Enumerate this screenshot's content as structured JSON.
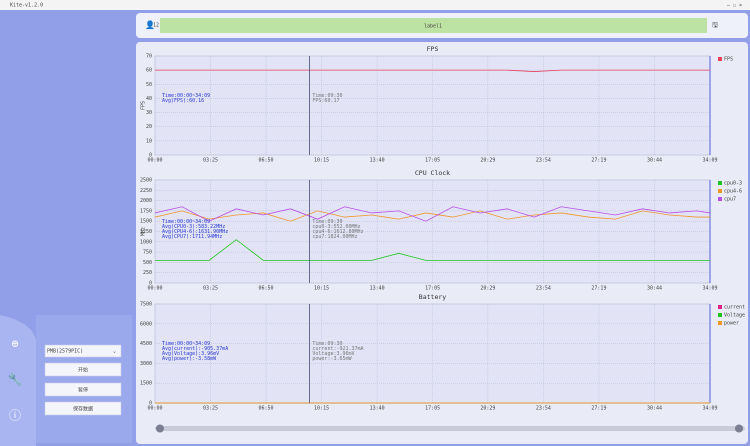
{
  "window": {
    "title": "Kite-v1.2.0"
  },
  "toolbar": {
    "user": "12",
    "label": "label1"
  },
  "controls": {
    "process": "PMB(2579PIC)",
    "buttons": [
      "开始",
      "暂停",
      "保存数据"
    ]
  },
  "chart_data": [
    {
      "type": "line",
      "title": "FPS",
      "y_label": "FPS",
      "cursor": 570,
      "x": [
        0,
        100,
        200,
        300,
        400,
        500,
        600,
        700,
        800,
        900,
        1000,
        1100,
        1200,
        1300,
        1400,
        1500,
        1600,
        1700,
        1800,
        1900,
        2000,
        2049
      ],
      "xlim": [
        0,
        2049
      ],
      "xticks": [
        {
          "value": 0,
          "label": "00:00"
        },
        {
          "value": 205,
          "label": "03:25"
        },
        {
          "value": 410,
          "label": "06:50"
        },
        {
          "value": 615,
          "label": "10:15"
        },
        {
          "value": 820,
          "label": "13:40"
        },
        {
          "value": 1025,
          "label": "17:05"
        },
        {
          "value": 1229,
          "label": "20:29"
        },
        {
          "value": 1434,
          "label": "23:54"
        },
        {
          "value": 1639,
          "label": "27:19"
        },
        {
          "value": 1844,
          "label": "30:44"
        },
        {
          "value": 2049,
          "label": "34:09"
        }
      ],
      "ylim": [
        0,
        70
      ],
      "yticks": [
        0,
        10,
        20,
        30,
        40,
        50,
        60,
        70
      ],
      "series": [
        {
          "name": "FPS",
          "color": "#e8405a",
          "values": [
            60,
            60,
            60,
            60,
            60,
            60,
            60,
            60,
            60,
            60,
            60,
            60,
            60,
            60,
            59,
            60,
            60,
            60,
            60,
            60,
            60,
            60
          ]
        }
      ],
      "summary": [
        "Time:00:00~34:09",
        "Avg(FPS):60.16"
      ],
      "cursor_text": [
        "Time:09:30",
        "FPS:60.17"
      ]
    },
    {
      "type": "line",
      "title": "CPU Clock",
      "y_label": "MHz",
      "cursor": 570,
      "x": [
        0,
        100,
        200,
        300,
        400,
        500,
        600,
        700,
        800,
        900,
        1000,
        1100,
        1200,
        1300,
        1400,
        1500,
        1600,
        1700,
        1800,
        1900,
        2000,
        2049
      ],
      "xlim": [
        0,
        2049
      ],
      "xticks": [
        {
          "value": 0,
          "label": "00:00"
        },
        {
          "value": 205,
          "label": "03:25"
        },
        {
          "value": 410,
          "label": "06:50"
        },
        {
          "value": 615,
          "label": "10:15"
        },
        {
          "value": 820,
          "label": "13:40"
        },
        {
          "value": 1025,
          "label": "17:05"
        },
        {
          "value": 1229,
          "label": "20:29"
        },
        {
          "value": 1434,
          "label": "23:54"
        },
        {
          "value": 1639,
          "label": "27:19"
        },
        {
          "value": 1844,
          "label": "30:44"
        },
        {
          "value": 2049,
          "label": "34:09"
        }
      ],
      "ylim": [
        0,
        2500
      ],
      "yticks": [
        0,
        250,
        500,
        750,
        1000,
        1250,
        1500,
        1750,
        2000,
        2250,
        2500
      ],
      "series": [
        {
          "name": "cpu0-3",
          "color": "#1ec41e",
          "values": [
            550,
            550,
            550,
            1050,
            550,
            550,
            550,
            550,
            550,
            720,
            550,
            550,
            550,
            550,
            550,
            550,
            550,
            550,
            550,
            550,
            550,
            550
          ]
        },
        {
          "name": "cpu4-6",
          "color": "#f0962a",
          "values": [
            1600,
            1750,
            1550,
            1650,
            1700,
            1500,
            1750,
            1600,
            1650,
            1550,
            1700,
            1600,
            1750,
            1550,
            1650,
            1700,
            1600,
            1550,
            1750,
            1650,
            1600,
            1600
          ]
        },
        {
          "name": "cpu7",
          "color": "#b94ee6",
          "values": [
            1700,
            1850,
            1500,
            1800,
            1650,
            1800,
            1550,
            1850,
            1700,
            1750,
            1500,
            1850,
            1700,
            1800,
            1600,
            1850,
            1750,
            1650,
            1800,
            1700,
            1750,
            1700
          ]
        }
      ],
      "summary": [
        "Time:00:00~34:09",
        "Avg(CPU0-3):583.22MHz",
        "Avg(CPU4-6):1631.90MHz",
        "Avg(CPU7):1711.94MHz"
      ],
      "cursor_text": [
        "Time:09:30",
        "cpu0-3:552.00MHz",
        "cpu4-6:1612.80MHz",
        "cpu7:1824.00MHz"
      ]
    },
    {
      "type": "line",
      "title": "Battery",
      "cursor": 570,
      "x": [
        0,
        100,
        200,
        300,
        400,
        500,
        600,
        700,
        800,
        900,
        1000,
        1100,
        1200,
        1300,
        1400,
        1500,
        1600,
        1700,
        1800,
        1900,
        2000,
        2049
      ],
      "xlim": [
        0,
        2049
      ],
      "xticks": [
        {
          "value": 0,
          "label": "00:00"
        },
        {
          "value": 205,
          "label": "03:25"
        },
        {
          "value": 410,
          "label": "06:50"
        },
        {
          "value": 615,
          "label": "10:15"
        },
        {
          "value": 820,
          "label": "13:40"
        },
        {
          "value": 1025,
          "label": "17:05"
        },
        {
          "value": 1229,
          "label": "20:29"
        },
        {
          "value": 1434,
          "label": "23:54"
        },
        {
          "value": 1639,
          "label": "27:19"
        },
        {
          "value": 1844,
          "label": "30:44"
        },
        {
          "value": 2049,
          "label": "34:09"
        }
      ],
      "ylim": [
        0,
        7500
      ],
      "yticks": [
        0,
        1500,
        3000,
        4500,
        6000,
        7500
      ],
      "series": [
        {
          "name": "current",
          "color": "#e0208c",
          "values": [
            0,
            0,
            0,
            0,
            0,
            0,
            0,
            0,
            0,
            0,
            0,
            0,
            0,
            0,
            0,
            0,
            0,
            0,
            0,
            0,
            0,
            0
          ]
        },
        {
          "name": "Voltage",
          "color": "#1ec41e",
          "values": [
            4,
            4,
            4,
            4,
            4,
            4,
            4,
            4,
            4,
            4,
            4,
            4,
            4,
            4,
            4,
            4,
            4,
            4,
            4,
            4,
            4,
            4
          ]
        },
        {
          "name": "power",
          "color": "#f0962a",
          "values": [
            4,
            4,
            4,
            4,
            4,
            4,
            4,
            4,
            4,
            4,
            4,
            4,
            4,
            4,
            4,
            4,
            4,
            4,
            4,
            4,
            4,
            4
          ]
        }
      ],
      "summary": [
        "Time:00:00~34:09",
        "Avg(current):-905.37mA",
        "Avg(Voltage):3.96mV",
        "Avg(power):-3.58mW"
      ],
      "cursor_text": [
        "Time:09:30",
        "current:-921.37mA",
        "Voltage:3.96mV",
        "power:-3.65mW"
      ]
    }
  ]
}
